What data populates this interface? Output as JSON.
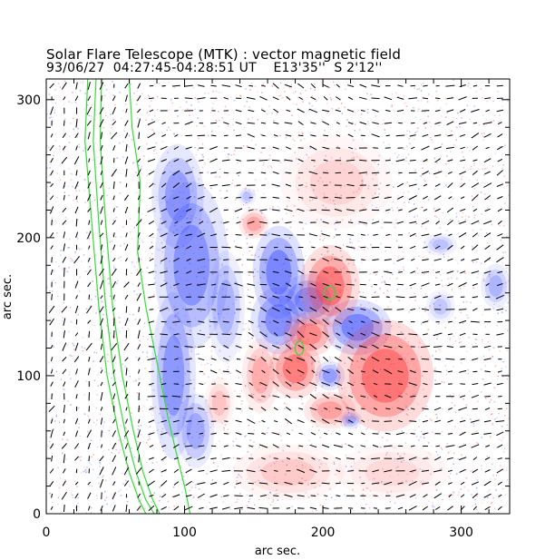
{
  "chart_data": {
    "type": "heatmap",
    "title": "Solar Flare Telescope (MTK) : vector magnetic field",
    "subtitle": {
      "date": "93/06/27",
      "time": "04:27:45-04:28:51 UT",
      "longitude": "E13'35''",
      "latitude": "S 2'12''"
    },
    "xlabel": "arc sec.",
    "ylabel": "arc sec.",
    "xlim": [
      0,
      335
    ],
    "ylim": [
      0,
      315
    ],
    "xticks": [
      0,
      100,
      200,
      300
    ],
    "yticks": [
      0,
      100,
      200,
      300
    ],
    "colors": {
      "positive_polarity": "#ff3a3a",
      "negative_polarity": "#3a4cff",
      "contour": "#33dd33",
      "vectors": "#000000"
    },
    "legend": "none",
    "grid": false,
    "field_regions": [
      {
        "polarity": "negative",
        "x": 95,
        "y": 230,
        "strength": 0.7,
        "rx": 14,
        "ry": 28
      },
      {
        "polarity": "negative",
        "x": 105,
        "y": 180,
        "strength": 0.8,
        "rx": 20,
        "ry": 45
      },
      {
        "polarity": "negative",
        "x": 92,
        "y": 100,
        "strength": 0.75,
        "rx": 12,
        "ry": 45
      },
      {
        "polarity": "negative",
        "x": 108,
        "y": 60,
        "strength": 0.6,
        "rx": 10,
        "ry": 20
      },
      {
        "polarity": "negative",
        "x": 130,
        "y": 150,
        "strength": 0.5,
        "rx": 10,
        "ry": 30
      },
      {
        "polarity": "negative",
        "x": 168,
        "y": 175,
        "strength": 0.95,
        "rx": 14,
        "ry": 25
      },
      {
        "polarity": "negative",
        "x": 168,
        "y": 140,
        "strength": 0.85,
        "rx": 15,
        "ry": 18
      },
      {
        "polarity": "negative",
        "x": 190,
        "y": 155,
        "strength": 0.8,
        "rx": 16,
        "ry": 14
      },
      {
        "polarity": "negative",
        "x": 225,
        "y": 135,
        "strength": 0.95,
        "rx": 18,
        "ry": 15
      },
      {
        "polarity": "negative",
        "x": 205,
        "y": 100,
        "strength": 0.7,
        "rx": 8,
        "ry": 8
      },
      {
        "polarity": "negative",
        "x": 220,
        "y": 68,
        "strength": 0.6,
        "rx": 6,
        "ry": 5
      },
      {
        "polarity": "negative",
        "x": 285,
        "y": 195,
        "strength": 0.4,
        "rx": 9,
        "ry": 6
      },
      {
        "polarity": "negative",
        "x": 325,
        "y": 165,
        "strength": 0.5,
        "rx": 8,
        "ry": 12
      },
      {
        "polarity": "negative",
        "x": 285,
        "y": 150,
        "strength": 0.35,
        "rx": 8,
        "ry": 9
      },
      {
        "polarity": "negative",
        "x": 145,
        "y": 230,
        "strength": 0.4,
        "rx": 5,
        "ry": 5
      },
      {
        "polarity": "positive",
        "x": 205,
        "y": 165,
        "strength": 0.95,
        "rx": 16,
        "ry": 22
      },
      {
        "polarity": "positive",
        "x": 190,
        "y": 130,
        "strength": 0.8,
        "rx": 14,
        "ry": 12
      },
      {
        "polarity": "positive",
        "x": 180,
        "y": 105,
        "strength": 0.9,
        "rx": 14,
        "ry": 16
      },
      {
        "polarity": "positive",
        "x": 245,
        "y": 100,
        "strength": 1.0,
        "rx": 26,
        "ry": 30
      },
      {
        "polarity": "positive",
        "x": 205,
        "y": 75,
        "strength": 0.6,
        "rx": 14,
        "ry": 10
      },
      {
        "polarity": "positive",
        "x": 150,
        "y": 210,
        "strength": 0.55,
        "rx": 8,
        "ry": 8
      },
      {
        "polarity": "positive",
        "x": 155,
        "y": 100,
        "strength": 0.5,
        "rx": 10,
        "ry": 20
      },
      {
        "polarity": "positive",
        "x": 125,
        "y": 80,
        "strength": 0.35,
        "rx": 8,
        "ry": 14
      },
      {
        "polarity": "positive",
        "x": 210,
        "y": 240,
        "strength": 0.25,
        "rx": 30,
        "ry": 25
      },
      {
        "polarity": "positive",
        "x": 175,
        "y": 30,
        "strength": 0.3,
        "rx": 30,
        "ry": 15
      },
      {
        "polarity": "positive",
        "x": 250,
        "y": 30,
        "strength": 0.2,
        "rx": 30,
        "ry": 15
      }
    ],
    "limb_contours": [
      {
        "x": [
          30,
          28,
          33,
          38,
          44,
          52,
          60,
          67,
          72
        ],
        "y": [
          315,
          270,
          210,
          150,
          100,
          60,
          30,
          10,
          0
        ]
      },
      {
        "x": [
          36,
          34,
          38,
          43,
          49,
          57,
          65,
          72,
          78
        ],
        "y": [
          315,
          270,
          210,
          150,
          100,
          60,
          30,
          10,
          0
        ]
      },
      {
        "x": [
          40,
          39,
          43,
          48,
          55,
          63,
          70,
          77,
          82
        ],
        "y": [
          315,
          270,
          210,
          150,
          100,
          60,
          30,
          10,
          0
        ]
      },
      {
        "x": [
          60,
          62,
          68,
          66,
          72,
          80,
          88,
          95,
          100,
          104
        ],
        "y": [
          315,
          280,
          240,
          190,
          150,
          110,
          70,
          40,
          20,
          0
        ]
      }
    ],
    "contour_islands": [
      {
        "x": 205,
        "y": 160,
        "rx": 4,
        "ry": 5
      },
      {
        "x": 183,
        "y": 120,
        "rx": 3,
        "ry": 5
      }
    ],
    "vector_grid": {
      "x_step": 9,
      "y_step": 9,
      "max_length": 10
    }
  }
}
